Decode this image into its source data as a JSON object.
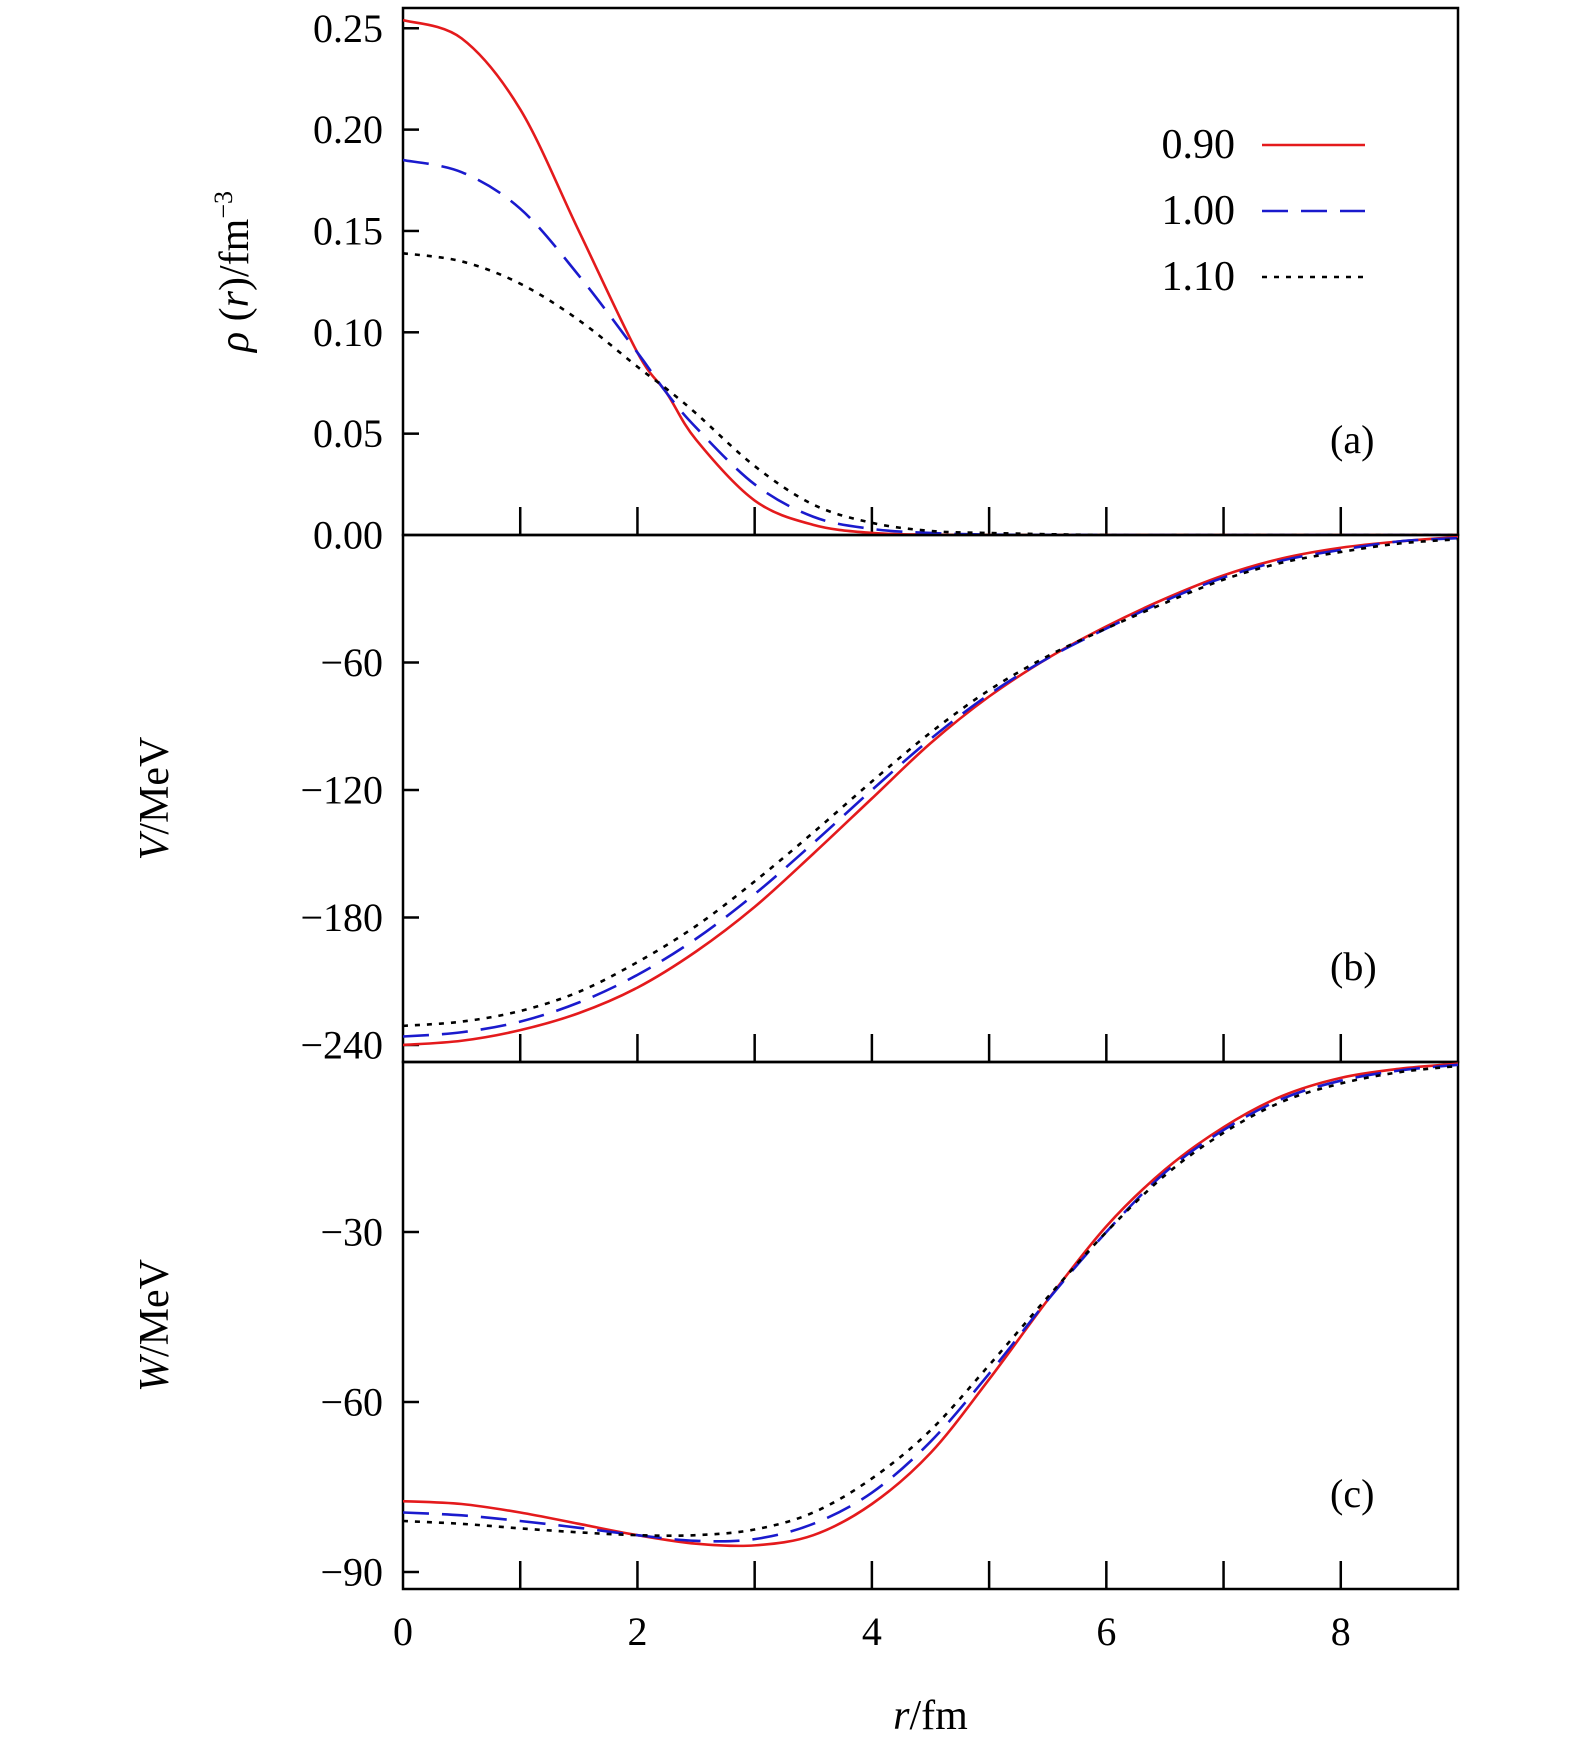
{
  "chart_data": [
    {
      "type": "line",
      "panel_label": "(a)",
      "ylabel": "ρ (r)/fm−3",
      "ylabel_parts": {
        "sym": "ρ",
        "open": " (",
        "var": "r",
        "close": ")/fm",
        "exp": "−3"
      },
      "ylim": [
        0,
        0.26
      ],
      "xlim": [
        0,
        9
      ],
      "yticks": [
        0.0,
        0.05,
        0.1,
        0.15,
        0.2,
        0.25
      ],
      "ytick_labels": [
        "0.00",
        "0.05",
        "0.10",
        "0.15",
        "0.20",
        "0.25"
      ],
      "legend": {
        "position": "top-right",
        "entries": [
          "0.90",
          "1.00",
          "1.10"
        ]
      },
      "x": [
        0,
        0.5,
        1,
        1.5,
        2,
        2.25,
        2.5,
        3,
        3.5,
        4,
        4.5,
        5,
        6,
        7,
        8,
        9
      ],
      "series": [
        {
          "name": "0.90",
          "color": "#e41a1c",
          "style": "solid",
          "values": [
            0.254,
            0.245,
            0.21,
            0.15,
            0.09,
            0.07,
            0.047,
            0.017,
            0.005,
            0.001,
            0.0002,
            0,
            0,
            0,
            0,
            0
          ]
        },
        {
          "name": "1.00",
          "color": "#1a1acd",
          "style": "dashed",
          "values": [
            0.185,
            0.179,
            0.161,
            0.128,
            0.09,
            0.07,
            0.053,
            0.025,
            0.009,
            0.003,
            0.001,
            0.0002,
            0,
            0,
            0,
            0
          ]
        },
        {
          "name": "1.10",
          "color": "#000000",
          "style": "dotted",
          "values": [
            0.139,
            0.135,
            0.124,
            0.106,
            0.083,
            0.072,
            0.06,
            0.034,
            0.015,
            0.006,
            0.002,
            0.001,
            0,
            0,
            0,
            0
          ]
        }
      ]
    },
    {
      "type": "line",
      "panel_label": "(b)",
      "ylabel": "V/MeV",
      "ylabel_parts": {
        "var": "V",
        "unit": "/MeV"
      },
      "ylim": [
        -248,
        0
      ],
      "xlim": [
        0,
        9
      ],
      "yticks": [
        -240,
        -180,
        -120,
        -60
      ],
      "ytick_labels": [
        "−240",
        "−180",
        "−120",
        "−60"
      ],
      "x": [
        0,
        0.5,
        1,
        1.5,
        2,
        2.5,
        3,
        3.5,
        4,
        4.5,
        5,
        5.5,
        6,
        6.5,
        7,
        7.5,
        8,
        8.5,
        9
      ],
      "series": [
        {
          "name": "0.90",
          "color": "#e41a1c",
          "style": "solid",
          "values": [
            -240,
            -238,
            -233,
            -225,
            -213,
            -196,
            -175,
            -150,
            -124,
            -98,
            -76,
            -58,
            -43,
            -30,
            -19,
            -11,
            -6,
            -3,
            -1
          ]
        },
        {
          "name": "1.00",
          "color": "#1a1acd",
          "style": "dashed",
          "values": [
            -236,
            -234,
            -229,
            -220,
            -207,
            -190,
            -169,
            -145,
            -120,
            -96,
            -75,
            -58,
            -44,
            -31,
            -20,
            -12,
            -7,
            -3,
            -1.5
          ]
        },
        {
          "name": "1.10",
          "color": "#000000",
          "style": "dotted",
          "values": [
            -231,
            -229,
            -224,
            -215,
            -201,
            -184,
            -163,
            -140,
            -116,
            -93,
            -73,
            -57,
            -44,
            -32,
            -21,
            -13,
            -8,
            -4,
            -2
          ]
        }
      ]
    },
    {
      "type": "line",
      "panel_label": "(c)",
      "ylabel": "W/MeV",
      "ylabel_parts": {
        "var": "W",
        "unit": "/MeV"
      },
      "ylim": [
        -93,
        0
      ],
      "xlim": [
        0,
        9
      ],
      "yticks": [
        -90,
        -60,
        -30
      ],
      "ytick_labels": [
        "−90",
        "−60",
        "−30"
      ],
      "x": [
        0,
        0.5,
        1,
        1.5,
        2,
        2.5,
        3,
        3.5,
        4,
        4.5,
        5,
        5.5,
        6,
        6.5,
        7,
        7.5,
        8,
        8.5,
        9
      ],
      "series": [
        {
          "name": "0.90",
          "color": "#e41a1c",
          "style": "solid",
          "values": [
            -77.5,
            -78,
            -79.5,
            -81.5,
            -83.5,
            -85,
            -85.3,
            -83.5,
            -78,
            -69,
            -56,
            -42,
            -29,
            -19,
            -11.5,
            -6,
            -2.8,
            -1.2,
            -0.3
          ]
        },
        {
          "name": "1.00",
          "color": "#1a1acd",
          "style": "dashed",
          "values": [
            -79.5,
            -80,
            -81,
            -82.2,
            -83.5,
            -84.5,
            -84.2,
            -81.5,
            -76,
            -67,
            -55,
            -42,
            -30,
            -19.5,
            -12,
            -6.5,
            -3.3,
            -1.5,
            -0.5
          ]
        },
        {
          "name": "1.10",
          "color": "#000000",
          "style": "dotted",
          "values": [
            -81,
            -81.5,
            -82.3,
            -83,
            -83.5,
            -83.5,
            -82.5,
            -79.5,
            -73.5,
            -65,
            -53.5,
            -41.5,
            -30,
            -20,
            -12.5,
            -7,
            -3.8,
            -1.8,
            -0.7
          ]
        }
      ]
    }
  ],
  "xaxis": {
    "label_var": "r",
    "label_unit": "/fm",
    "ticks": [
      0,
      2,
      4,
      6,
      8
    ],
    "tick_labels": [
      "0",
      "2",
      "4",
      "6",
      "8"
    ],
    "minor_ticks": [
      1,
      3,
      5,
      7
    ]
  }
}
